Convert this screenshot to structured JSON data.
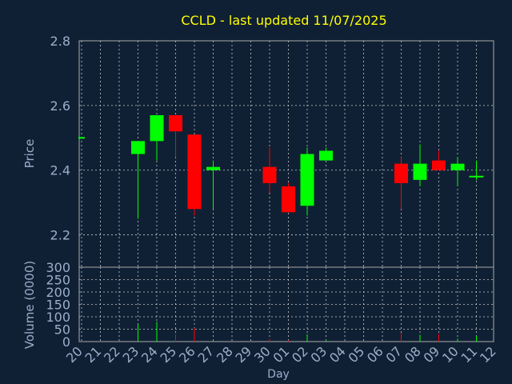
{
  "chart_data": {
    "type": "candlestick",
    "title": "CCLD - last updated 11/07/2025",
    "xlabel": "Day",
    "days": [
      "20",
      "21",
      "22",
      "23",
      "24",
      "25",
      "26",
      "27",
      "28",
      "29",
      "30",
      "01",
      "02",
      "03",
      "04",
      "05",
      "06",
      "07",
      "08",
      "09",
      "10",
      "11",
      "12"
    ],
    "price_panel": {
      "ylabel": "Price",
      "ylim": [
        2.1,
        2.8
      ],
      "yticks": [
        "2.2",
        "2.4",
        "2.6",
        "2.8"
      ],
      "grid": true,
      "candles": [
        {
          "day": "20",
          "open": 2.5,
          "close": 2.5,
          "high": 2.5,
          "low": 2.5
        },
        {
          "day": "23",
          "open": 2.45,
          "close": 2.49,
          "high": 2.49,
          "low": 2.25
        },
        {
          "day": "24",
          "open": 2.49,
          "close": 2.57,
          "high": 2.57,
          "low": 2.43
        },
        {
          "day": "25",
          "open": 2.57,
          "close": 2.52,
          "high": 2.57,
          "low": 2.44
        },
        {
          "day": "26",
          "open": 2.51,
          "close": 2.28,
          "high": 2.51,
          "low": 2.26
        },
        {
          "day": "27",
          "open": 2.4,
          "close": 2.41,
          "high": 2.43,
          "low": 2.28
        },
        {
          "day": "30",
          "open": 2.41,
          "close": 2.36,
          "high": 2.47,
          "low": 2.33
        },
        {
          "day": "01",
          "open": 2.35,
          "close": 2.27,
          "high": 2.36,
          "low": 2.27
        },
        {
          "day": "02",
          "open": 2.29,
          "close": 2.45,
          "high": 2.47,
          "low": 2.26
        },
        {
          "day": "03",
          "open": 2.43,
          "close": 2.46,
          "high": 2.47,
          "low": 2.43
        },
        {
          "day": "07",
          "open": 2.42,
          "close": 2.36,
          "high": 2.44,
          "low": 2.28
        },
        {
          "day": "08",
          "open": 2.37,
          "close": 2.42,
          "high": 2.48,
          "low": 2.35
        },
        {
          "day": "09",
          "open": 2.43,
          "close": 2.4,
          "high": 2.46,
          "low": 2.4
        },
        {
          "day": "10",
          "open": 2.4,
          "close": 2.42,
          "high": 2.44,
          "low": 2.35
        },
        {
          "day": "11",
          "open": 2.38,
          "close": 2.38,
          "high": 2.43,
          "low": 2.37
        }
      ]
    },
    "volume_panel": {
      "ylabel": "Volume (0000)",
      "ylim": [
        0,
        300
      ],
      "yticks": [
        "0",
        "50",
        "100",
        "150",
        "200",
        "250",
        "300"
      ],
      "grid": true,
      "bars": [
        {
          "day": "23",
          "value": 70
        },
        {
          "day": "24",
          "value": 80
        },
        {
          "day": "25",
          "value": 30
        },
        {
          "day": "26",
          "value": 55
        },
        {
          "day": "27",
          "value": 8
        },
        {
          "day": "30",
          "value": 10
        },
        {
          "day": "01",
          "value": 5
        },
        {
          "day": "02",
          "value": 30
        },
        {
          "day": "03",
          "value": 8
        },
        {
          "day": "07",
          "value": 35
        },
        {
          "day": "08",
          "value": 28
        },
        {
          "day": "09",
          "value": 30
        },
        {
          "day": "10",
          "value": 12
        },
        {
          "day": "11",
          "value": 22
        }
      ]
    },
    "colors": {
      "background": "#102034",
      "plot_background": "#102034",
      "axis": "#aaaaaa",
      "grid": "#c8c8c8",
      "text": "#9aaecb",
      "title": "#ffff00",
      "up": "#00ff00",
      "down": "#ff0000"
    }
  }
}
